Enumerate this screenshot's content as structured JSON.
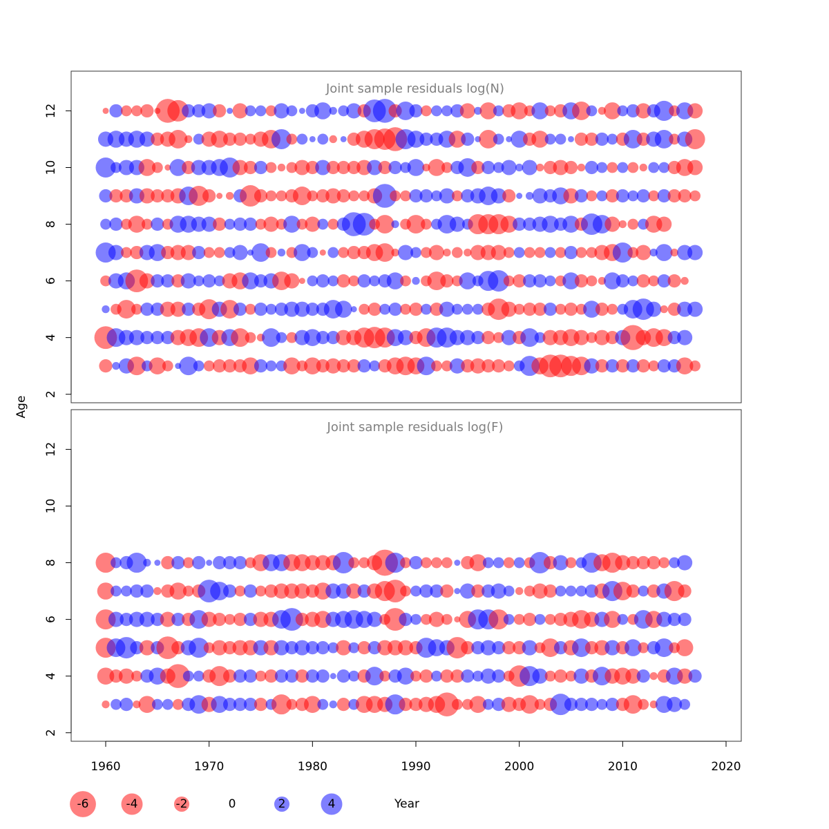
{
  "chart_data": {
    "type": "bubble",
    "xlabel": "Year",
    "ylabel": "Age",
    "xlim": [
      1957,
      2022
    ],
    "x_ticks": [
      1960,
      1970,
      1980,
      1990,
      2000,
      2010,
      2020
    ],
    "y_ticks": [
      2,
      4,
      6,
      8,
      10,
      12
    ],
    "ylim": [
      1.7,
      13.4
    ],
    "colors": {
      "negative": "#ff0000",
      "positive": "#0000ff",
      "opacity": 0.5
    },
    "legend": {
      "placement": "bottom",
      "entries": [
        "-6",
        "-4",
        "-2",
        "0",
        "2",
        "4"
      ],
      "values": [
        -6,
        -4,
        -2,
        0,
        2,
        4
      ]
    },
    "panels": [
      {
        "title": "Joint sample residuals log(N)",
        "ages": [
          3,
          4,
          5,
          6,
          7,
          8,
          9,
          10,
          11,
          12
        ],
        "years": [
          1960,
          2018
        ],
        "rows": {
          "12": [
            -0.3,
            1.5,
            -1.0,
            -1.0,
            -1.5,
            -0.3,
            -5.0,
            -4.0,
            1.5,
            1.5,
            2.0,
            -1.5,
            0.3,
            -2.0,
            1.0,
            1.0,
            -1.0,
            2.0,
            1.0,
            0.3,
            1.5,
            2.5,
            0.5,
            1.0,
            2.0,
            -1.5,
            4.5,
            5.0,
            -1.5,
            3.0,
            1.5,
            -1.0,
            1.0,
            1.0,
            1.5,
            -2.0,
            0.5,
            -2.5,
            1.0,
            -1.5,
            -2.5,
            -1.0,
            2.5,
            -1.0,
            -1.5,
            2.5,
            -3.0,
            1.0,
            -0.5,
            -2.5,
            1.0,
            1.5,
            -2.0,
            1.5,
            3.5,
            -1.0,
            2.5,
            -2.0
          ],
          "11": [
            2.0,
            2.5,
            2.0,
            2.5,
            2.0,
            -1.5,
            -2.0,
            -3.0,
            -0.5,
            1.0,
            -2.0,
            -2.5,
            -1.5,
            -1.5,
            -1.0,
            -2.0,
            -3.0,
            3.5,
            -1.0,
            1.0,
            0.3,
            1.0,
            -0.5,
            0.3,
            -1.5,
            -2.5,
            -3.5,
            -4.0,
            -5.0,
            3.5,
            2.5,
            1.5,
            1.5,
            2.5,
            -2.5,
            1.5,
            0.3,
            -3.0,
            1.0,
            0.3,
            2.5,
            -1.5,
            -2.5,
            1.0,
            1.0,
            0.3,
            -1.5,
            -1.5,
            1.5,
            1.0,
            -1.5,
            3.0,
            -1.5,
            2.0,
            3.0,
            -1.0,
            2.0,
            -3.5
          ],
          "10": [
            3.5,
            1.0,
            2.0,
            2.0,
            -2.5,
            -1.0,
            -0.3,
            2.5,
            -1.5,
            2.0,
            2.0,
            2.5,
            3.5,
            -2.0,
            -1.5,
            1.5,
            -1.0,
            -0.5,
            -1.0,
            -2.0,
            -1.5,
            2.0,
            -1.5,
            -1.5,
            -1.5,
            -2.0,
            2.0,
            -1.5,
            1.5,
            1.0,
            2.5,
            -0.5,
            -2.5,
            -1.0,
            1.5,
            3.0,
            -1.5,
            1.5,
            1.0,
            2.0,
            0.5,
            2.0,
            -0.5,
            -1.5,
            -2.0,
            -1.5,
            -0.5,
            1.5,
            1.0,
            -1.0,
            1.0,
            -1.0,
            -0.5,
            1.0,
            1.0,
            -1.5,
            -2.5,
            -2.0
          ],
          "9": [
            1.5,
            -1.5,
            -1.5,
            2.0,
            -2.0,
            -1.5,
            -1.5,
            -2.0,
            3.0,
            -3.5,
            -1.5,
            -0.3,
            -0.5,
            1.5,
            -4.0,
            -1.5,
            -1.0,
            -1.0,
            -1.5,
            -3.0,
            -1.0,
            -1.5,
            -2.0,
            -1.5,
            -1.0,
            -1.0,
            -2.0,
            5.0,
            -1.0,
            -1.0,
            1.5,
            1.5,
            1.0,
            2.0,
            -1.0,
            1.5,
            2.0,
            3.0,
            2.0,
            -1.5,
            0.3,
            0.5,
            2.0,
            1.5,
            2.5,
            -2.0,
            1.5,
            -1.0,
            1.0,
            -1.5,
            1.5,
            1.0,
            1.5,
            -1.0,
            1.5,
            -1.5,
            -1.5,
            -1.0
          ],
          "8": [
            1.0,
            1.5,
            -1.0,
            -2.5,
            -1.0,
            1.5,
            -1.0,
            2.5,
            2.5,
            2.0,
            2.0,
            -1.5,
            1.0,
            1.5,
            1.5,
            -1.0,
            -2.0,
            -1.0,
            2.5,
            -1.0,
            -2.0,
            1.0,
            -1.0,
            1.5,
            5.0,
            4.5,
            -1.0,
            -3.0,
            0.5,
            -1.0,
            -3.0,
            -1.0,
            1.0,
            3.0,
            2.0,
            1.0,
            -3.5,
            -3.5,
            -3.5,
            -2.5,
            1.5,
            1.5,
            2.0,
            2.5,
            1.5,
            2.5,
            -1.5,
            4.0,
            3.0,
            -2.0,
            -0.5,
            -1.0,
            1.0,
            -2.5,
            -2.0
          ],
          "7": [
            3.5,
            2.0,
            -1.0,
            -1.5,
            2.0,
            2.5,
            -1.5,
            -2.0,
            -2.0,
            1.5,
            -1.0,
            -1.0,
            1.0,
            2.0,
            0.3,
            3.0,
            -1.0,
            0.5,
            -1.0,
            2.5,
            1.0,
            -0.3,
            1.0,
            -1.0,
            -1.5,
            -1.5,
            -2.5,
            -3.0,
            -0.5,
            2.0,
            1.0,
            -1.0,
            -2.0,
            -0.5,
            -1.0,
            -0.5,
            -2.0,
            -2.0,
            -2.0,
            -1.0,
            1.0,
            -1.0,
            -1.0,
            1.0,
            -1.0,
            1.5,
            -1.0,
            -1.0,
            -2.0,
            -2.5,
            3.5,
            -1.0,
            -2.0,
            0.5,
            2.5,
            -0.5,
            2.0,
            2.0
          ],
          "6": [
            -1.0,
            2.0,
            2.5,
            -4.5,
            -2.0,
            1.5,
            1.5,
            -1.5,
            2.0,
            1.0,
            1.5,
            1.0,
            -2.0,
            -2.5,
            2.5,
            1.5,
            2.0,
            -3.0,
            -2.0,
            -0.3,
            1.0,
            1.5,
            1.0,
            -1.5,
            -1.0,
            1.5,
            1.0,
            1.5,
            2.5,
            -1.0,
            0.5,
            -1.0,
            -3.0,
            -1.5,
            -1.0,
            2.5,
            1.0,
            3.5,
            4.0,
            -1.0,
            -1.5,
            1.5,
            1.5,
            1.0,
            -1.0,
            2.5,
            -1.5,
            -1.0,
            -0.5,
            2.5,
            1.5,
            1.0,
            -1.5,
            -1.0,
            1.5,
            -1.5,
            -0.5
          ],
          "5": [
            0.5,
            -1.0,
            -3.0,
            -1.0,
            1.5,
            1.5,
            -2.0,
            -2.0,
            1.5,
            -1.5,
            -3.5,
            2.0,
            -3.0,
            1.5,
            -1.0,
            1.5,
            1.0,
            1.5,
            2.0,
            2.0,
            1.5,
            1.5,
            3.0,
            2.5,
            0.3,
            -1.0,
            -1.5,
            1.0,
            1.5,
            -1.0,
            -1.5,
            1.0,
            -1.5,
            2.0,
            1.0,
            1.0,
            1.0,
            -1.5,
            -4.0,
            -2.0,
            -1.0,
            -1.5,
            -1.5,
            1.5,
            -1.0,
            -1.5,
            -1.0,
            2.5,
            -1.5,
            -1.0,
            1.0,
            3.0,
            4.0,
            2.0,
            -0.5,
            -1.5,
            2.0,
            2.0
          ],
          "4": [
            -4.5,
            3.0,
            2.0,
            2.0,
            1.5,
            1.5,
            1.5,
            -2.0,
            -2.5,
            -3.0,
            3.0,
            -2.0,
            2.5,
            -3.0,
            -1.0,
            -0.5,
            3.0,
            1.0,
            -1.0,
            2.0,
            2.5,
            1.5,
            1.5,
            -2.0,
            -2.0,
            -3.5,
            -4.0,
            -3.5,
            2.5,
            2.0,
            -1.5,
            -3.0,
            3.5,
            3.5,
            2.0,
            2.0,
            1.5,
            -1.5,
            -1.0,
            2.0,
            -1.5,
            3.0,
            1.0,
            -2.0,
            -2.0,
            -2.5,
            -2.0,
            -1.0,
            -2.0,
            -1.5,
            2.0,
            -5.5,
            -2.0,
            -3.0,
            -2.5,
            1.5,
            2.0
          ],
          "3": [
            -1.5,
            0.5,
            2.0,
            -3.0,
            1.0,
            -2.5,
            -1.0,
            0.3,
            3.0,
            1.0,
            -1.0,
            -1.5,
            -1.5,
            -1.5,
            -2.5,
            1.5,
            1.0,
            1.0,
            -2.5,
            -1.0,
            -2.5,
            -1.5,
            -2.0,
            -1.5,
            -1.5,
            1.5,
            1.0,
            -1.5,
            -2.5,
            -3.0,
            -2.5,
            3.0,
            -1.0,
            -1.0,
            2.0,
            -1.5,
            -2.0,
            -1.5,
            -1.5,
            -1.0,
            1.0,
            3.5,
            -2.5,
            -4.5,
            -4.5,
            -3.5,
            -3.0,
            2.0,
            -1.5,
            1.5,
            -1.5,
            1.5,
            -1.5,
            -1.0,
            1.5,
            1.5,
            -2.5,
            -1.0
          ]
        }
      },
      {
        "title": "Joint sample residuals log(F)",
        "ages": [
          3,
          4,
          5,
          6,
          7,
          8
        ],
        "years": [
          1960,
          2018
        ],
        "rows": {
          "8": [
            -3.5,
            1.0,
            1.5,
            3.5,
            0.5,
            0.3,
            -1.5,
            1.5,
            -1.0,
            1.5,
            0.3,
            1.5,
            1.5,
            1.5,
            -1.0,
            -2.5,
            2.5,
            2.5,
            -2.5,
            -2.5,
            -2.0,
            -2.0,
            -2.0,
            4.0,
            -1.0,
            -1.0,
            -2.0,
            -6.0,
            3.5,
            -1.0,
            1.5,
            -1.0,
            -1.0,
            -1.0,
            0.3,
            -1.5,
            -2.5,
            1.0,
            1.0,
            -1.0,
            1.0,
            -1.0,
            4.0,
            -1.5,
            2.0,
            -1.0,
            1.0,
            3.5,
            -2.5,
            -3.5,
            -2.0,
            -1.5,
            -1.5,
            -1.5,
            -1.0,
            1.0,
            2.0
          ],
          "7": [
            -2.5,
            1.0,
            1.0,
            1.5,
            1.5,
            -0.5,
            -1.5,
            -2.5,
            -1.0,
            -1.5,
            4.5,
            3.0,
            1.5,
            -1.0,
            1.5,
            -1.0,
            -1.5,
            -2.0,
            -2.0,
            -2.0,
            -1.5,
            -2.5,
            2.0,
            2.0,
            -2.0,
            1.5,
            -2.0,
            -3.5,
            -4.5,
            -1.0,
            1.0,
            1.5,
            1.5,
            -1.5,
            0.3,
            2.0,
            -1.5,
            1.5,
            2.0,
            1.0,
            -0.5,
            -1.0,
            -2.0,
            -1.5,
            1.0,
            1.0,
            1.0,
            1.5,
            -2.0,
            3.5,
            -3.0,
            -1.5,
            1.0,
            -1.5,
            2.0,
            -3.5,
            -1.5
          ],
          "6": [
            -3.5,
            2.0,
            1.5,
            2.0,
            2.0,
            1.5,
            -2.0,
            1.5,
            -1.5,
            3.0,
            -2.0,
            -1.5,
            -1.0,
            -1.5,
            1.5,
            -2.0,
            -2.0,
            3.0,
            4.5,
            -1.5,
            -2.0,
            -2.5,
            2.0,
            2.5,
            3.0,
            2.5,
            2.0,
            -1.0,
            -4.5,
            1.5,
            1.0,
            -1.0,
            -2.0,
            -1.0,
            -0.3,
            -2.5,
            3.5,
            3.5,
            -3.5,
            1.0,
            -1.0,
            -1.5,
            1.0,
            -1.0,
            -1.5,
            -2.0,
            -3.0,
            -2.0,
            2.0,
            -2.5,
            1.0,
            -1.0,
            3.0,
            -2.5,
            2.0,
            1.5,
            1.5
          ],
          "5": [
            -3.5,
            3.0,
            4.0,
            1.5,
            -2.0,
            1.5,
            -4.5,
            -1.5,
            2.0,
            3.5,
            -1.0,
            -2.0,
            -1.5,
            -2.0,
            -2.0,
            2.0,
            -2.0,
            2.0,
            1.5,
            2.0,
            1.5,
            1.5,
            1.0,
            -2.0,
            1.0,
            -1.5,
            1.5,
            -2.0,
            -2.0,
            -2.0,
            -1.5,
            3.5,
            2.5,
            2.0,
            -4.0,
            -1.5,
            1.5,
            2.0,
            1.5,
            -1.5,
            -1.5,
            2.0,
            -1.0,
            -3.0,
            1.5,
            -2.0,
            3.0,
            -1.5,
            -2.0,
            2.0,
            -1.5,
            2.5,
            -1.0,
            1.5,
            3.0,
            -1.0,
            -2.5
          ],
          "4": [
            -2.5,
            -1.5,
            -2.0,
            -1.0,
            1.5,
            2.5,
            -2.0,
            -5.0,
            1.0,
            1.0,
            -1.5,
            -3.5,
            -1.5,
            1.5,
            1.5,
            -1.0,
            -1.5,
            1.5,
            1.5,
            -1.5,
            1.5,
            1.5,
            0.3,
            1.5,
            1.0,
            -1.5,
            3.0,
            -1.0,
            1.5,
            2.5,
            -1.0,
            -1.5,
            1.0,
            -1.5,
            -1.5,
            1.5,
            1.0,
            2.0,
            1.5,
            -1.0,
            -4.0,
            3.5,
            2.0,
            -1.0,
            -1.5,
            -1.0,
            2.0,
            -1.5,
            3.0,
            -2.0,
            -2.5,
            -2.0,
            1.5,
            -0.5,
            -1.5,
            2.5,
            -2.0,
            1.5
          ],
          "3": [
            -0.5,
            1.0,
            1.5,
            -0.5,
            -2.5,
            1.0,
            1.0,
            -1.0,
            1.5,
            3.0,
            -2.0,
            2.5,
            1.5,
            1.5,
            1.5,
            -1.5,
            1.0,
            -3.5,
            -1.0,
            -1.5,
            -2.5,
            1.0,
            0.5,
            -1.5,
            1.0,
            -2.5,
            -2.5,
            -2.0,
            3.5,
            -1.5,
            -1.5,
            -2.0,
            -2.5,
            -5.0,
            -1.0,
            -1.0,
            -2.5,
            1.0,
            1.5,
            -2.0,
            -1.5,
            -3.0,
            -1.0,
            -1.5,
            4.0,
            1.5,
            1.5,
            1.5,
            1.0,
            1.5,
            -1.5,
            -3.0,
            -1.0,
            -0.5,
            2.5,
            2.0,
            1.0
          ]
        }
      }
    ]
  }
}
